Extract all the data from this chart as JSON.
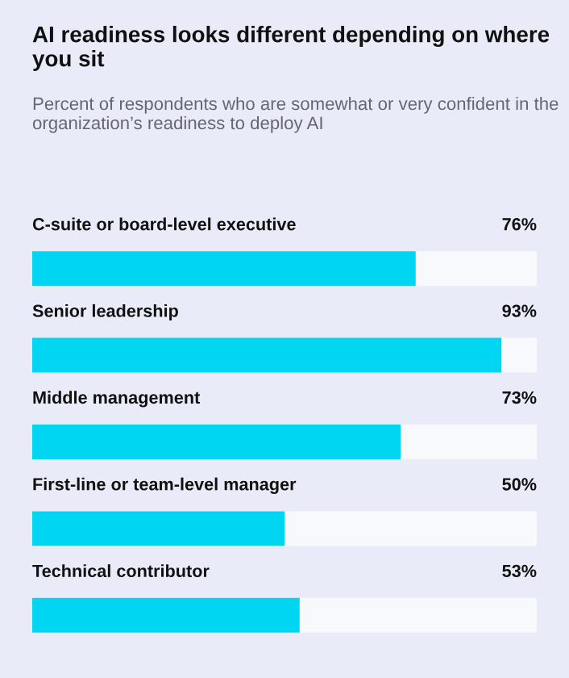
{
  "chart_data": {
    "type": "bar",
    "orientation": "horizontal",
    "title": "AI readiness looks different depending on where you sit",
    "subtitle": "Percent of respondents who are somewhat or very confident in the organization’s readiness to deploy AI",
    "categories": [
      "C-suite or board-level executive",
      "Senior leadership",
      "Middle management",
      "First-line or team-level manager",
      "Technical contributor"
    ],
    "values": [
      76,
      93,
      73,
      50,
      53
    ],
    "value_labels": [
      "76%",
      "93%",
      "73%",
      "50%",
      "53%"
    ],
    "color": "#00d5f2",
    "xlim": [
      0,
      100
    ]
  }
}
